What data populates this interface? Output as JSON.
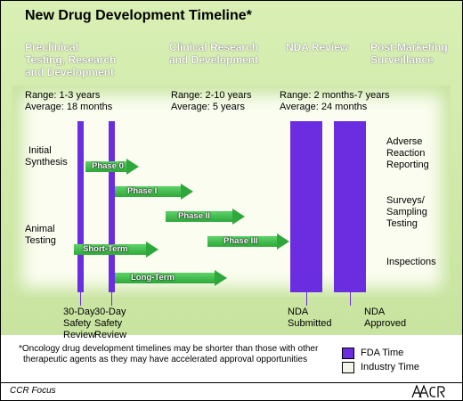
{
  "title": "New Drug Development Timeline*",
  "phases": [
    {
      "label_lines": [
        "Preclinical",
        "Testing, Research",
        "and Development"
      ],
      "range": "Range: 1-3 years",
      "average": "Average: 18 months"
    },
    {
      "label_lines": [
        "Clinical Research",
        "and Development"
      ],
      "range": "Range: 2-10 years",
      "average": "Average: 5 years"
    },
    {
      "label_lines": [
        "NDA Review"
      ],
      "range": "Range: 2 months-7 years",
      "average": "Average: 24 months"
    },
    {
      "label_lines": [
        "Post-Marketing",
        "Surveillance"
      ]
    }
  ],
  "left_labels": {
    "initial_synthesis": [
      "Initial",
      "Synthesis"
    ],
    "animal_testing": [
      "Animal",
      "Testing"
    ]
  },
  "arrows": {
    "phase0": "Phase 0",
    "phase1": "Phase I",
    "phase2": "Phase II",
    "phase3": "Phase III",
    "short_term": "Short-Term",
    "long_term": "Long-Term"
  },
  "right_labels": {
    "adverse": [
      "Adverse",
      "Reaction",
      "Reporting"
    ],
    "surveys": [
      "Surveys/",
      "Sampling",
      "Testing"
    ],
    "inspections": "Inspections"
  },
  "milestones": {
    "safety1": [
      "30-Day",
      "Safety",
      "Review"
    ],
    "safety2": [
      "30-Day",
      "Safety",
      "Review"
    ],
    "nda_submitted": [
      "NDA",
      "Submitted"
    ],
    "nda_approved": [
      "NDA",
      "Approved"
    ]
  },
  "footnote": [
    "*Oncology drug development timelines may be shorter than those with other",
    "therapeutic agents as they may have accelerated approval opportunities"
  ],
  "legend": [
    {
      "label": "FDA Time",
      "color": "#6a2ee0"
    },
    {
      "label": "Industry Time",
      "color": "#f4f4e8"
    }
  ],
  "footer": {
    "journal": "CCR Focus",
    "logo": "AACR"
  },
  "colors": {
    "fda": "#6a2ee0",
    "arrow": "#2ea83a",
    "background": "#c8e4a0"
  }
}
